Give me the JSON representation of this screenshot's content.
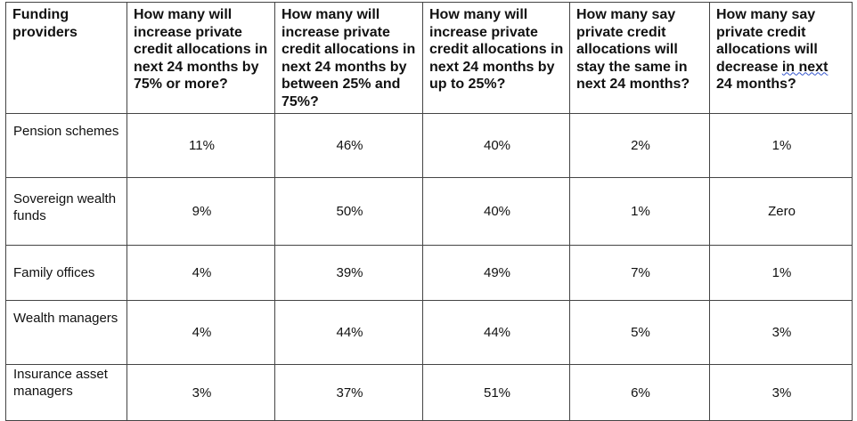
{
  "columns": [
    "Funding providers",
    "How many will increase private credit allocations in next 24 months by 75% or more?",
    "How many will increase private credit allocations in next 24 months by between 25% and 75%?",
    "How many will increase private credit allocations in next 24 months by up to 25%?",
    "How many say private credit allocations will stay the same in next 24 months?",
    "How many say private credit allocations will decrease in next 24 months?"
  ],
  "rows": [
    {
      "label": "Pension schemes",
      "values": [
        "11%",
        "46%",
        "40%",
        "2%",
        "1%"
      ]
    },
    {
      "label": "Sovereign wealth funds",
      "values": [
        "9%",
        "50%",
        "40%",
        "1%",
        "Zero"
      ]
    },
    {
      "label": "Family offices",
      "values": [
        "4%",
        "39%",
        "49%",
        "7%",
        "1%"
      ]
    },
    {
      "label": "Wealth managers",
      "values": [
        "4%",
        "44%",
        "44%",
        "5%",
        "3%"
      ]
    },
    {
      "label": "Insurance asset managers",
      "values": [
        "3%",
        "37%",
        "51%",
        "6%",
        "3%"
      ]
    }
  ],
  "colors": {
    "border": "#444444",
    "text": "#111111"
  }
}
